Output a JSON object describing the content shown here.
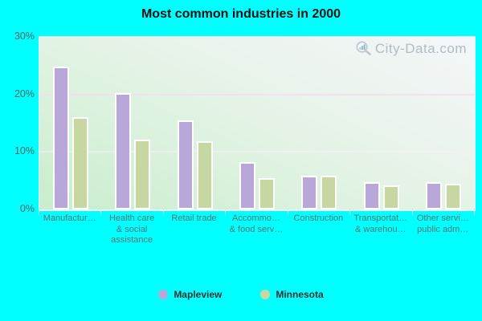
{
  "title": "Most common industries in 2000",
  "watermark": "City-Data.com",
  "colors": {
    "background": "#00ffff",
    "mapleview_bar": "#b9a7d9",
    "minnesota_bar": "#c7d7a2",
    "bar_border": "#ffffff",
    "axis_text": "#5d7373",
    "title_text": "#111111",
    "legend_text": "#2e2e2e",
    "watermark_text": "#a9b6be"
  },
  "y_axis": {
    "ticks": [
      "30%",
      "20%",
      "10%",
      "0%"
    ],
    "max_percent": 30
  },
  "x_axis": {
    "label_lines": [
      [
        "Manufactur…"
      ],
      [
        "Health care",
        "& social",
        "assistance"
      ],
      [
        "Retail trade"
      ],
      [
        "Accommo…",
        "& food serv…"
      ],
      [
        "Construction"
      ],
      [
        "Transportat…",
        "& warehou…"
      ],
      [
        "Other servi…",
        "public adm…"
      ]
    ]
  },
  "legend": [
    {
      "label": "Mapleview",
      "color": "#b9a7d9"
    },
    {
      "label": "Minnesota",
      "color": "#c7d7a2"
    }
  ],
  "chart_data": {
    "type": "bar",
    "title": "Most common industries in 2000",
    "categories": [
      "Manufactur…",
      "Health care & social assistance",
      "Retail trade",
      "Accommo… & food serv…",
      "Construction",
      "Transportat… & warehou…",
      "Other servi… public adm…"
    ],
    "series": [
      {
        "name": "Mapleview",
        "color": "#b9a7d9",
        "values": [
          24.8,
          20.2,
          15.5,
          8.3,
          5.9,
          4.8,
          4.8
        ]
      },
      {
        "name": "Minnesota",
        "color": "#c7d7a2",
        "values": [
          16.1,
          12.2,
          11.9,
          5.5,
          5.9,
          4.2,
          4.5
        ]
      }
    ],
    "ylabel": "",
    "xlabel": "",
    "ylim": [
      0,
      30
    ],
    "yticks_percent": [
      0,
      10,
      20,
      30
    ],
    "grid": true,
    "legend_position": "bottom"
  }
}
